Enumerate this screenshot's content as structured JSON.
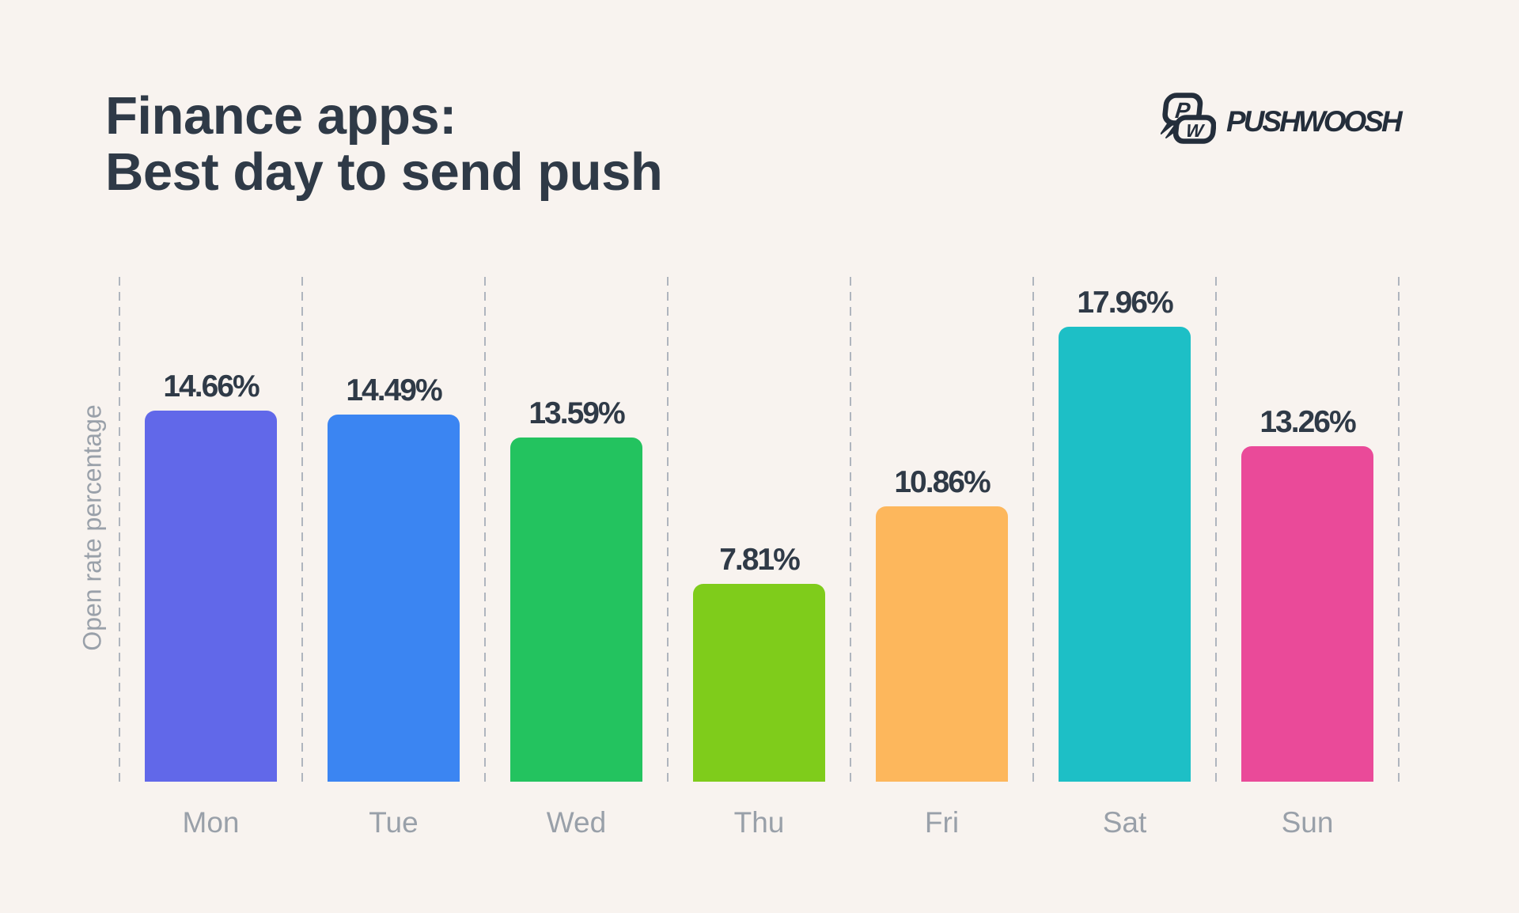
{
  "colors": {
    "background": "#F8F3EF",
    "heading": "#2F3A47",
    "axis_text": "#99A0A9",
    "gridline": "#AFB5BE",
    "logo": "#242E3B"
  },
  "header": {
    "title_line1": "Finance apps:",
    "title_line2": "Best day to send push"
  },
  "logo": {
    "brand": "PUSHWOOSH",
    "icon_letter_p": "P",
    "icon_letter_w": "W"
  },
  "chart_data": {
    "type": "bar",
    "title": "Finance apps: Best day to send push",
    "categories": [
      "Mon",
      "Tue",
      "Wed",
      "Thu",
      "Fri",
      "Sat",
      "Sun"
    ],
    "values": [
      14.66,
      14.49,
      13.59,
      7.81,
      10.86,
      17.96,
      13.26
    ],
    "value_labels": [
      "14.66%",
      "14.49%",
      "13.59%",
      "7.81%",
      "10.86%",
      "17.96%",
      "13.26%"
    ],
    "bar_colors": [
      "#6168E9",
      "#3B85F2",
      "#23C35F",
      "#7FCC1B",
      "#FDB75C",
      "#1DBFC6",
      "#EA4A99"
    ],
    "xlabel": "",
    "ylabel": "Open rate percentage",
    "ylim": [
      0,
      18
    ],
    "grid": "vertical-dashed-separators",
    "legend": "none"
  }
}
